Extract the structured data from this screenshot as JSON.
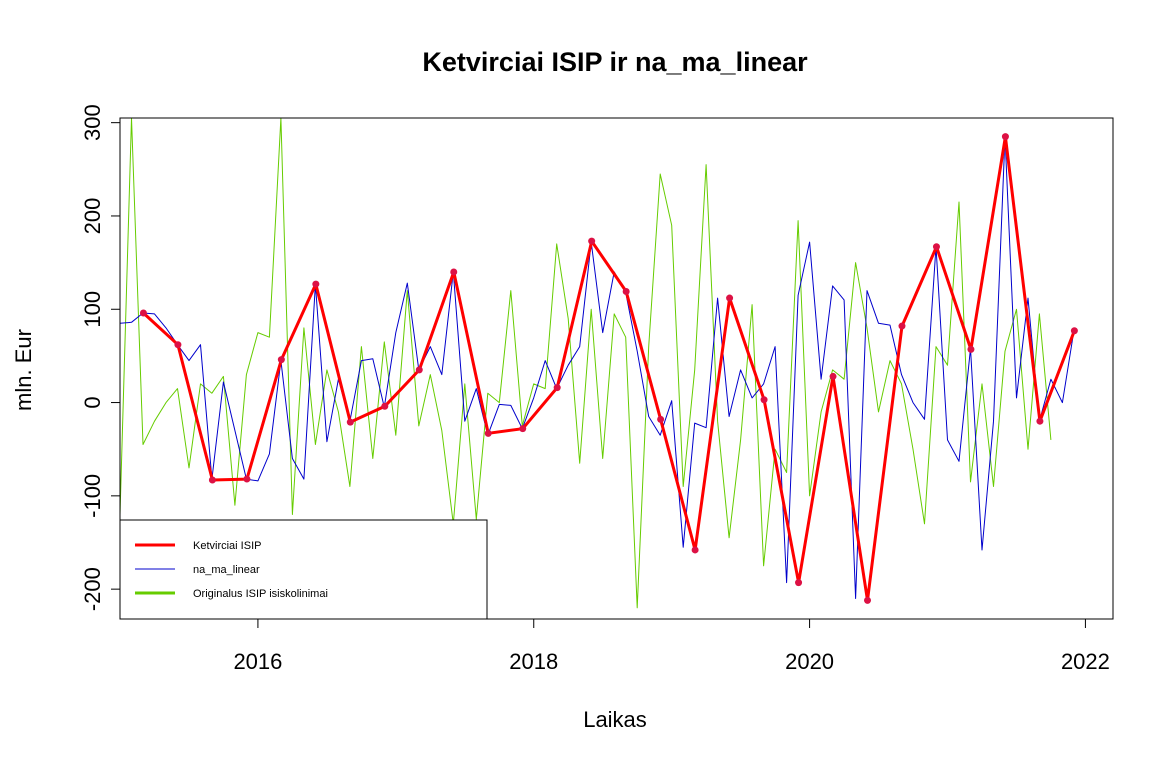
{
  "chart_data": {
    "type": "line",
    "title": "Ketvirciai ISIP ir na_ma_linear",
    "xlabel": "Laikas",
    "ylabel": "mln. Eur",
    "xlim": [
      2015.0,
      2022.2
    ],
    "ylim": [
      -232,
      305
    ],
    "x_ticks": [
      2016,
      2018,
      2020,
      2022
    ],
    "x_tick_labels": [
      "2016",
      "2018",
      "2020",
      "2022"
    ],
    "y_ticks": [
      -200,
      -100,
      0,
      100,
      200,
      300
    ],
    "y_tick_labels": [
      "-200",
      "-100",
      "0",
      "100",
      "200",
      "300"
    ],
    "grid": false,
    "legend_position": "bottom-left",
    "colors": {
      "quarterly": "#ff0000",
      "quarterly_points": "#dd1144",
      "na_ma_linear": "#0000cc",
      "original": "#66cc00"
    },
    "series": [
      {
        "key": "original",
        "name": "Originalus ISIP isiskolinimai",
        "start": 2015.0,
        "step": 0.0833333,
        "values": [
          -120,
          305,
          -45,
          -20,
          0,
          15,
          -70,
          20,
          10,
          28,
          -110,
          30,
          75,
          70,
          305,
          -120,
          80,
          -45,
          35,
          -10,
          -90,
          60,
          -60,
          65,
          -35,
          120,
          -25,
          30,
          -30,
          -130,
          20,
          -125,
          10,
          0,
          120,
          -25,
          20,
          15,
          170,
          90,
          -65,
          100,
          -60,
          95,
          70,
          -220,
          60,
          245,
          190,
          -90,
          35,
          255,
          -20,
          -145,
          -40,
          105,
          -175,
          -50,
          -75,
          195,
          -100,
          -10,
          35,
          25,
          150,
          80,
          -10,
          45,
          20,
          -50,
          -130,
          60,
          40,
          215,
          -85,
          20,
          -90,
          55,
          100,
          -50,
          95,
          -40
        ]
      },
      {
        "key": "na_ma_linear",
        "name": "na_ma_linear",
        "start": 2015.0,
        "step": 0.0833333,
        "values": [
          85,
          86,
          96,
          95,
          80,
          62,
          45,
          62,
          -82,
          22,
          -30,
          -82,
          -84,
          -55,
          45,
          -60,
          -82,
          127,
          -42,
          25,
          -20,
          45,
          47,
          -5,
          75,
          128,
          35,
          60,
          30,
          140,
          -20,
          15,
          -35,
          -2,
          -3,
          -28,
          5,
          45,
          15,
          40,
          60,
          172,
          75,
          140,
          118,
          55,
          -15,
          -35,
          2,
          -155,
          -22,
          -27,
          112,
          -15,
          35,
          5,
          20,
          60,
          -193,
          115,
          172,
          25,
          125,
          110,
          -210,
          120,
          85,
          83,
          30,
          0,
          -18,
          167,
          -40,
          -63,
          58,
          -158,
          -20,
          285,
          5,
          112,
          -20,
          25,
          0,
          77
        ]
      },
      {
        "key": "quarterly",
        "name": "Ketvirciai ISIP",
        "x": [
          2015.17,
          2015.42,
          2015.67,
          2015.92,
          2016.17,
          2016.42,
          2016.67,
          2016.92,
          2017.17,
          2017.42,
          2017.67,
          2017.92,
          2018.17,
          2018.42,
          2018.67,
          2018.92,
          2019.17,
          2019.42,
          2019.67,
          2019.92,
          2020.17,
          2020.42,
          2020.67,
          2020.92,
          2021.17,
          2021.42,
          2021.67,
          2021.92
        ],
        "values": [
          96,
          62,
          -83,
          -82,
          46,
          127,
          -21,
          -4,
          35,
          140,
          -33,
          -28,
          16,
          173,
          119,
          -18,
          -158,
          112,
          3,
          -193,
          28,
          -212,
          82,
          167,
          57,
          285,
          -20,
          77
        ]
      }
    ]
  }
}
